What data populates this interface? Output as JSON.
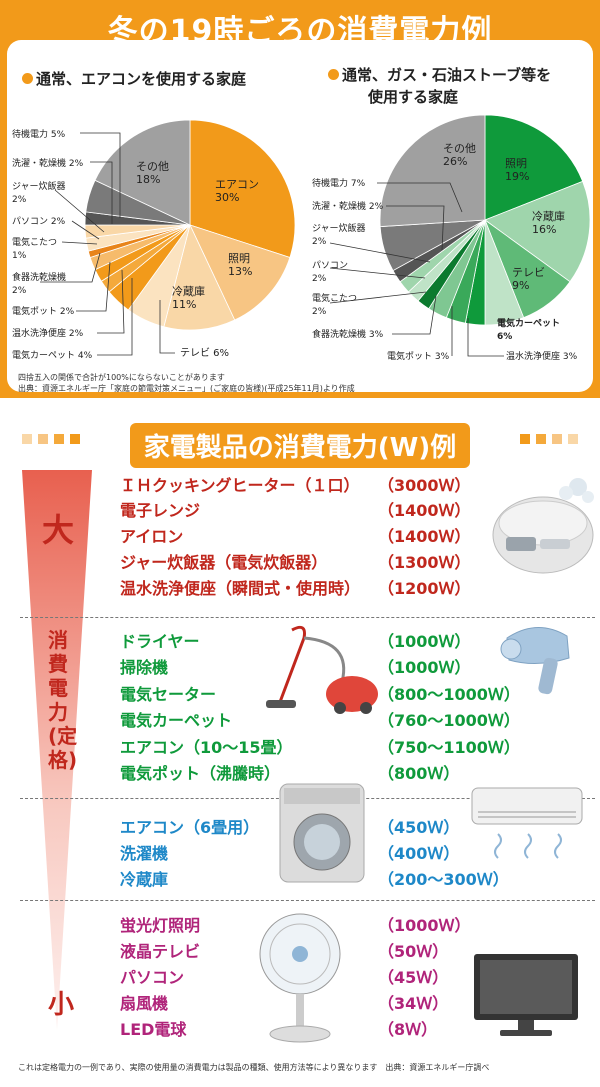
{
  "main_title": "冬の19時ごろの消費電力例",
  "chart_data": [
    {
      "type": "pie",
      "title": "通常、エアコンを使用する家庭",
      "slices": [
        {
          "label": "エアコン",
          "value": 30,
          "color": "#f29a1a"
        },
        {
          "label": "照明",
          "value": 13,
          "color": "#f7c583"
        },
        {
          "label": "冷蔵庫",
          "value": 11,
          "color": "#f9d7a7"
        },
        {
          "label": "テレビ",
          "value": 6,
          "color": "#fbe3c0"
        },
        {
          "label": "電気カーペット",
          "value": 4,
          "color": "#f29a1a"
        },
        {
          "label": "温水洗浄便座",
          "value": 2,
          "color": "#f4a93b"
        },
        {
          "label": "電気ポット",
          "value": 2,
          "color": "#f29a1a"
        },
        {
          "label": "食器洗乾燥機",
          "value": 2,
          "color": "#f6bb6b"
        },
        {
          "label": "電気こたつ",
          "value": 1,
          "color": "#e8841a"
        },
        {
          "label": "パソコン",
          "value": 2,
          "color": "#fbe3c0"
        },
        {
          "label": "ジャー炊飯器",
          "value": 2,
          "color": "#f9d7a7"
        },
        {
          "label": "洗濯・乾燥機",
          "value": 2,
          "color": "#555555"
        },
        {
          "label": "待機電力",
          "value": 5,
          "color": "#7a7a7a"
        },
        {
          "label": "その他",
          "value": 18,
          "color": "#a0a0a0"
        }
      ]
    },
    {
      "type": "pie",
      "title": "通常、ガス・石油ストーブ等を使用する家庭",
      "slices": [
        {
          "label": "照明",
          "value": 19,
          "color": "#0f9a3b"
        },
        {
          "label": "冷蔵庫",
          "value": 16,
          "color": "#9fd5ac"
        },
        {
          "label": "テレビ",
          "value": 9,
          "color": "#5fba77"
        },
        {
          "label": "電気カーペット",
          "value": 6,
          "color": "#bfe3c7"
        },
        {
          "label": "温水洗浄便座",
          "value": 3,
          "color": "#0f9a3b"
        },
        {
          "label": "電気ポット",
          "value": 3,
          "color": "#3aa95a"
        },
        {
          "label": "食器洗乾燥機",
          "value": 3,
          "color": "#7fc792"
        },
        {
          "label": "電気こたつ",
          "value": 2,
          "color": "#0b7a2e"
        },
        {
          "label": "パソコン",
          "value": 2,
          "color": "#bfe3c7"
        },
        {
          "label": "ジャー炊飯器",
          "value": 2,
          "color": "#9fd5ac"
        },
        {
          "label": "洗濯・乾燥機",
          "value": 2,
          "color": "#555555"
        },
        {
          "label": "待機電力",
          "value": 7,
          "color": "#7a7a7a"
        },
        {
          "label": "その他",
          "value": 26,
          "color": "#a0a0a0"
        }
      ]
    }
  ],
  "pie1": {
    "title": "通常、エアコンを使用する家庭",
    "labels": {
      "aircon": "エアコン\n30%",
      "light": "照明\n13%",
      "fridge": "冷蔵庫\n11%",
      "other": "その他\n18%",
      "standby": "待機電力 5%",
      "washer": "洗濯・乾燥機 2%",
      "rice": "ジャー炊飯器\n2%",
      "pc": "パソコン 2%",
      "kotatsu": "電気こたつ\n1%",
      "dish": "食器洗乾燥機\n2%",
      "pot": "電気ポット 2%",
      "toilet": "温水洗浄便座 2%",
      "carpet": "電気カーペット 4%",
      "tv": "テレビ 6%"
    }
  },
  "pie2": {
    "title_l1": "通常、ガス・石油ストーブ等を",
    "title_l2": "使用する家庭",
    "labels": {
      "other": "その他\n26%",
      "light": "照明\n19%",
      "fridge": "冷蔵庫\n16%",
      "tv": "テレビ\n9%",
      "carpet": "電気カーペット\n6%",
      "toilet": "温水洗浄便座 3%",
      "pot": "電気ポット 3%",
      "dish": "食器洗乾燥機 3%",
      "kotatsu": "電気こたつ\n2%",
      "pc": "パソコン\n2%",
      "rice": "ジャー炊飯器\n2%",
      "washer": "洗濯・乾燥機 2%",
      "standby": "待機電力 7%"
    }
  },
  "notes": {
    "line1": "四捨五入の関係で合計が100%にならないことがあります",
    "line2": "出典：資源エネルギー庁「家庭の節電対策メニュー」(ご家庭の皆様)(平成25年11月)より作成"
  },
  "section2": {
    "title": "家電製品の消費電力(W)例",
    "scale_big": "大",
    "scale_mid": "消費電力(定格)",
    "scale_small": "小"
  },
  "groups": [
    {
      "color": "red",
      "items": [
        {
          "name": "ＩＨクッキングヒーター（１口）",
          "watt": "（3000Ｗ）"
        },
        {
          "name": "電子レンジ",
          "watt": "（1400Ｗ）"
        },
        {
          "name": "アイロン",
          "watt": "（1400Ｗ）"
        },
        {
          "name": "ジャー炊飯器（電気炊飯器）",
          "watt": "（1300Ｗ）"
        },
        {
          "name": "温水洗浄便座（瞬間式・使用時）",
          "watt": "（1200Ｗ）"
        }
      ]
    },
    {
      "color": "grn",
      "items": [
        {
          "name": "ドライヤー",
          "watt": "（1000Ｗ）"
        },
        {
          "name": "掃除機",
          "watt": "（1000Ｗ）"
        },
        {
          "name": "電気セーター",
          "watt": "（800～1000Ｗ）"
        },
        {
          "name": "電気カーペット",
          "watt": "（760～1000Ｗ）"
        },
        {
          "name": "エアコン（10～15畳）",
          "watt": "（750～1100Ｗ）"
        },
        {
          "name": "電気ポット（沸騰時）",
          "watt": "（800Ｗ）"
        }
      ]
    },
    {
      "color": "blu",
      "items": [
        {
          "name": "エアコン（6畳用）",
          "watt": "（450Ｗ）"
        },
        {
          "name": "洗濯機",
          "watt": "（400Ｗ）"
        },
        {
          "name": "冷蔵庫",
          "watt": "（200～300Ｗ）"
        }
      ]
    },
    {
      "color": "mag",
      "items": [
        {
          "name": "蛍光灯照明",
          "watt": "（1000Ｗ）"
        },
        {
          "name": "液晶テレビ",
          "watt": "（50Ｗ）"
        },
        {
          "name": "パソコン",
          "watt": "（45Ｗ）"
        },
        {
          "name": "扇風機",
          "watt": "（34Ｗ）"
        },
        {
          "name": "LED電球",
          "watt": "（8Ｗ）"
        }
      ]
    }
  ],
  "footer": "これは定格電力の一例であり、実際の使用量の消費電力は製品の種類、使用方法等により異なります　出典：資源エネルギー庁調べ",
  "icons": [
    "rice-cooker-icon",
    "hair-dryer-icon",
    "vacuum-cleaner-icon",
    "washing-machine-icon",
    "air-conditioner-icon",
    "electric-fan-icon",
    "tv-icon"
  ]
}
